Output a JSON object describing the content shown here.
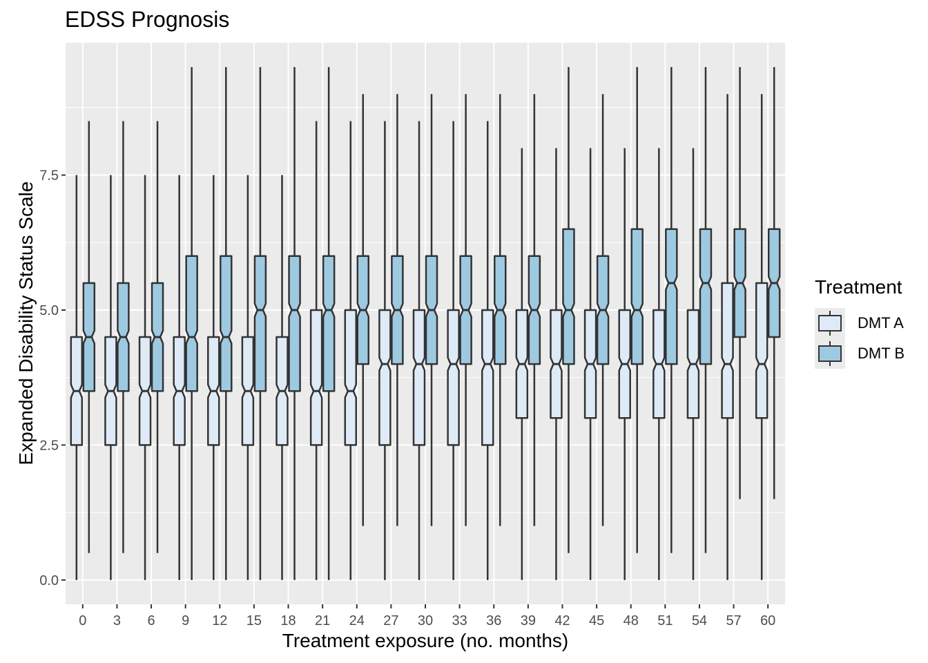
{
  "chart_data": {
    "type": "boxplot",
    "title": "EDSS Prognosis",
    "xlabel": "Treatment exposure (no. months)",
    "ylabel": "Expanded Disability Status Scale",
    "categories": [
      "0",
      "3",
      "6",
      "9",
      "12",
      "15",
      "18",
      "21",
      "24",
      "27",
      "30",
      "33",
      "36",
      "39",
      "42",
      "45",
      "48",
      "51",
      "54",
      "57",
      "60"
    ],
    "y_ticks": [
      "0.0",
      "2.5",
      "5.0",
      "7.5"
    ],
    "ylim": [
      -0.45,
      9.95
    ],
    "grid": true,
    "notched": true,
    "legend_title": "Treatment",
    "legend_position": "right",
    "series": [
      {
        "name": "DMT A",
        "color": "#deebf7",
        "boxes": [
          {
            "min": 0,
            "q1": 2.5,
            "median": 3.5,
            "q3": 4.5,
            "max": 7.5
          },
          {
            "min": 0,
            "q1": 2.5,
            "median": 3.5,
            "q3": 4.5,
            "max": 7.5
          },
          {
            "min": 0,
            "q1": 2.5,
            "median": 3.5,
            "q3": 4.5,
            "max": 7.5
          },
          {
            "min": 0,
            "q1": 2.5,
            "median": 3.5,
            "q3": 4.5,
            "max": 7.5
          },
          {
            "min": 0,
            "q1": 2.5,
            "median": 3.5,
            "q3": 4.5,
            "max": 7.5
          },
          {
            "min": 0,
            "q1": 2.5,
            "median": 3.5,
            "q3": 4.5,
            "max": 7.5
          },
          {
            "min": 0,
            "q1": 2.5,
            "median": 3.5,
            "q3": 4.5,
            "max": 7.5
          },
          {
            "min": 0,
            "q1": 2.5,
            "median": 3.5,
            "q3": 5.0,
            "max": 8.5
          },
          {
            "min": 0,
            "q1": 2.5,
            "median": 3.5,
            "q3": 5.0,
            "max": 8.5
          },
          {
            "min": 0,
            "q1": 2.5,
            "median": 4.0,
            "q3": 5.0,
            "max": 8.5
          },
          {
            "min": 0,
            "q1": 2.5,
            "median": 4.0,
            "q3": 5.0,
            "max": 8.5
          },
          {
            "min": 0,
            "q1": 2.5,
            "median": 4.0,
            "q3": 5.0,
            "max": 8.5
          },
          {
            "min": 0,
            "q1": 2.5,
            "median": 4.0,
            "q3": 5.0,
            "max": 8.5
          },
          {
            "min": 0,
            "q1": 3.0,
            "median": 4.0,
            "q3": 5.0,
            "max": 8.0
          },
          {
            "min": 0,
            "q1": 3.0,
            "median": 4.0,
            "q3": 5.0,
            "max": 8.0
          },
          {
            "min": 0,
            "q1": 3.0,
            "median": 4.0,
            "q3": 5.0,
            "max": 8.0
          },
          {
            "min": 0,
            "q1": 3.0,
            "median": 4.0,
            "q3": 5.0,
            "max": 8.0
          },
          {
            "min": 0,
            "q1": 3.0,
            "median": 4.0,
            "q3": 5.0,
            "max": 8.0
          },
          {
            "min": 0,
            "q1": 3.0,
            "median": 4.0,
            "q3": 5.0,
            "max": 8.0
          },
          {
            "min": 0,
            "q1": 3.0,
            "median": 4.0,
            "q3": 5.5,
            "max": 9.0
          },
          {
            "min": 0,
            "q1": 3.0,
            "median": 4.0,
            "q3": 5.5,
            "max": 9.0
          }
        ]
      },
      {
        "name": "DMT B",
        "color": "#9ecae1",
        "boxes": [
          {
            "min": 0.5,
            "q1": 3.5,
            "median": 4.5,
            "q3": 5.5,
            "max": 8.5
          },
          {
            "min": 0.5,
            "q1": 3.5,
            "median": 4.5,
            "q3": 5.5,
            "max": 8.5
          },
          {
            "min": 0.5,
            "q1": 3.5,
            "median": 4.5,
            "q3": 5.5,
            "max": 8.5
          },
          {
            "min": 0,
            "q1": 3.5,
            "median": 4.5,
            "q3": 6.0,
            "max": 9.5
          },
          {
            "min": 0,
            "q1": 3.5,
            "median": 4.5,
            "q3": 6.0,
            "max": 9.5
          },
          {
            "min": 0,
            "q1": 3.5,
            "median": 5.0,
            "q3": 6.0,
            "max": 9.5
          },
          {
            "min": 0,
            "q1": 3.5,
            "median": 5.0,
            "q3": 6.0,
            "max": 9.5
          },
          {
            "min": 0,
            "q1": 3.5,
            "median": 5.0,
            "q3": 6.0,
            "max": 9.5
          },
          {
            "min": 1.0,
            "q1": 4.0,
            "median": 5.0,
            "q3": 6.0,
            "max": 9.0
          },
          {
            "min": 1.0,
            "q1": 4.0,
            "median": 5.0,
            "q3": 6.0,
            "max": 9.0
          },
          {
            "min": 1.0,
            "q1": 4.0,
            "median": 5.0,
            "q3": 6.0,
            "max": 9.0
          },
          {
            "min": 1.0,
            "q1": 4.0,
            "median": 5.0,
            "q3": 6.0,
            "max": 9.0
          },
          {
            "min": 1.0,
            "q1": 4.0,
            "median": 5.0,
            "q3": 6.0,
            "max": 9.0
          },
          {
            "min": 1.0,
            "q1": 4.0,
            "median": 5.0,
            "q3": 6.0,
            "max": 9.0
          },
          {
            "min": 0.5,
            "q1": 4.0,
            "median": 5.0,
            "q3": 6.5,
            "max": 9.5
          },
          {
            "min": 1.0,
            "q1": 4.0,
            "median": 5.0,
            "q3": 6.0,
            "max": 9.0
          },
          {
            "min": 0.5,
            "q1": 4.0,
            "median": 5.0,
            "q3": 6.5,
            "max": 9.5
          },
          {
            "min": 0.5,
            "q1": 4.0,
            "median": 5.5,
            "q3": 6.5,
            "max": 9.5
          },
          {
            "min": 0.5,
            "q1": 4.0,
            "median": 5.5,
            "q3": 6.5,
            "max": 9.5
          },
          {
            "min": 1.5,
            "q1": 4.5,
            "median": 5.5,
            "q3": 6.5,
            "max": 9.5
          },
          {
            "min": 1.5,
            "q1": 4.5,
            "median": 5.5,
            "q3": 6.5,
            "max": 9.5
          }
        ]
      }
    ]
  }
}
